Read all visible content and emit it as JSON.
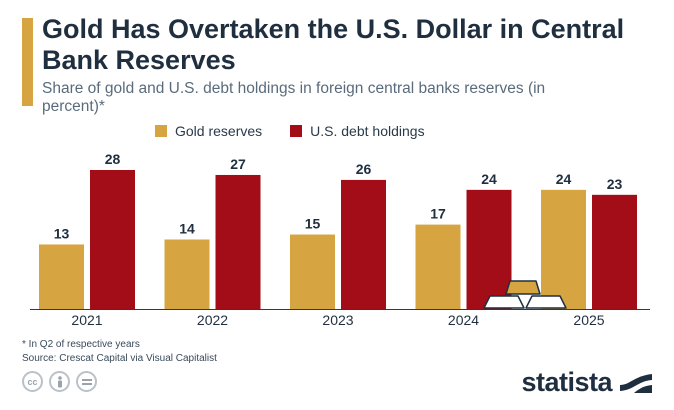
{
  "header": {
    "title": "Gold Has Overtaken the U.S. Dollar in Central Bank Reserves",
    "subtitle": "Share of gold and U.S. debt holdings in foreign central banks reserves (in percent)*"
  },
  "colors": {
    "gold": "#d6a441",
    "usdebt": "#a20d18",
    "accent": "#d6a441"
  },
  "chart_data": {
    "type": "bar",
    "categories": [
      "2021",
      "2022",
      "2023",
      "2024",
      "2025"
    ],
    "series": [
      {
        "name": "Gold reserves",
        "values": [
          13,
          14,
          15,
          17,
          24
        ]
      },
      {
        "name": "U.S. debt holdings",
        "values": [
          28,
          27,
          26,
          24,
          23
        ]
      }
    ],
    "title": "Gold Has Overtaken the U.S. Dollar in Central Bank Reserves",
    "xlabel": "",
    "ylabel": "",
    "ylim": [
      0,
      28
    ],
    "grid": false,
    "legend": "top"
  },
  "footer": {
    "note": "* In Q2 of respective years",
    "source": "Source: Crescat Capital via Visual Capitalist",
    "license_icons": [
      "cc-icon",
      "attribution-icon",
      "no-derivatives-icon"
    ],
    "brand": "statista"
  }
}
